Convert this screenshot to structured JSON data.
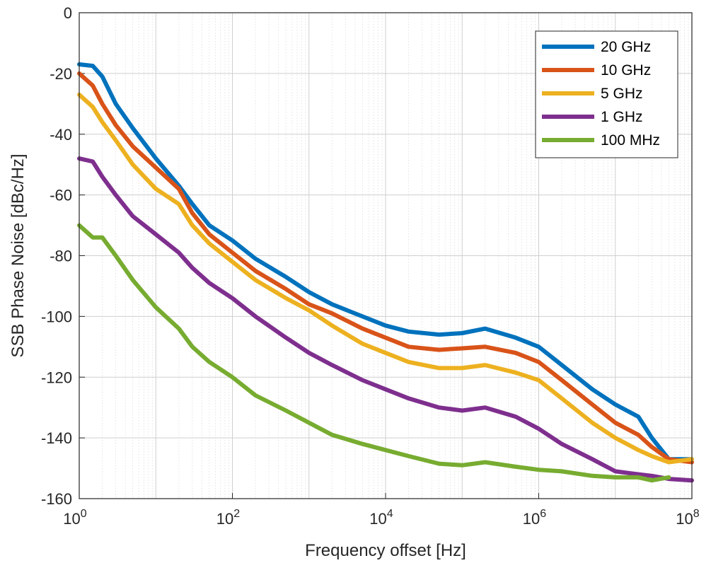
{
  "chart_data": {
    "type": "line",
    "title": "",
    "xlabel": "Frequency offset [Hz]",
    "ylabel": "SSB Phase Noise [dBc/Hz]",
    "x_scale": "log",
    "xlim": [
      1,
      100000000
    ],
    "ylim": [
      -160,
      0
    ],
    "x_ticks": [
      {
        "value": 1,
        "base": "10",
        "exp": "0"
      },
      {
        "value": 100,
        "base": "10",
        "exp": "2"
      },
      {
        "value": 10000,
        "base": "10",
        "exp": "4"
      },
      {
        "value": 1000000,
        "base": "10",
        "exp": "6"
      },
      {
        "value": 100000000,
        "base": "10",
        "exp": "8"
      }
    ],
    "y_ticks": [
      "0",
      "-20",
      "-40",
      "-60",
      "-80",
      "-100",
      "-120",
      "-140",
      "-160"
    ],
    "grid": true,
    "legend_position": "top-right",
    "series": [
      {
        "name": "20 GHz",
        "color": "#0072BD",
        "points": [
          [
            1,
            -17
          ],
          [
            1.5,
            -17.5
          ],
          [
            2,
            -21
          ],
          [
            3,
            -30
          ],
          [
            5,
            -38
          ],
          [
            10,
            -48
          ],
          [
            20,
            -57
          ],
          [
            30,
            -63
          ],
          [
            50,
            -70
          ],
          [
            100,
            -75
          ],
          [
            200,
            -81
          ],
          [
            500,
            -87
          ],
          [
            1000,
            -92
          ],
          [
            2000,
            -96
          ],
          [
            5000,
            -100
          ],
          [
            10000,
            -103
          ],
          [
            20000,
            -105
          ],
          [
            50000,
            -106
          ],
          [
            100000,
            -105.5
          ],
          [
            200000,
            -104
          ],
          [
            500000,
            -107
          ],
          [
            1000000,
            -110
          ],
          [
            2000000,
            -116
          ],
          [
            5000000,
            -124
          ],
          [
            10000000,
            -129
          ],
          [
            20000000,
            -133
          ],
          [
            30000000,
            -140
          ],
          [
            50000000,
            -147
          ],
          [
            100000000,
            -147
          ]
        ]
      },
      {
        "name": "10 GHz",
        "color": "#D95319",
        "points": [
          [
            1,
            -20
          ],
          [
            1.5,
            -24
          ],
          [
            2,
            -30
          ],
          [
            3,
            -37
          ],
          [
            5,
            -44
          ],
          [
            10,
            -51
          ],
          [
            20,
            -58
          ],
          [
            30,
            -66
          ],
          [
            50,
            -73
          ],
          [
            100,
            -79
          ],
          [
            200,
            -85
          ],
          [
            500,
            -91
          ],
          [
            1000,
            -96
          ],
          [
            2000,
            -99
          ],
          [
            5000,
            -104
          ],
          [
            10000,
            -107
          ],
          [
            20000,
            -110
          ],
          [
            50000,
            -111
          ],
          [
            100000,
            -110.5
          ],
          [
            200000,
            -110
          ],
          [
            500000,
            -112
          ],
          [
            1000000,
            -115
          ],
          [
            2000000,
            -121
          ],
          [
            5000000,
            -129
          ],
          [
            10000000,
            -135
          ],
          [
            20000000,
            -139
          ],
          [
            30000000,
            -143
          ],
          [
            50000000,
            -147
          ],
          [
            100000000,
            -148
          ]
        ]
      },
      {
        "name": "5 GHz",
        "color": "#EDB120",
        "points": [
          [
            1,
            -27
          ],
          [
            1.5,
            -31
          ],
          [
            2,
            -36
          ],
          [
            3,
            -42
          ],
          [
            5,
            -50
          ],
          [
            10,
            -58
          ],
          [
            20,
            -63
          ],
          [
            30,
            -70
          ],
          [
            50,
            -76
          ],
          [
            100,
            -82
          ],
          [
            200,
            -88
          ],
          [
            500,
            -94
          ],
          [
            1000,
            -98
          ],
          [
            2000,
            -103
          ],
          [
            5000,
            -109
          ],
          [
            10000,
            -112
          ],
          [
            20000,
            -115
          ],
          [
            50000,
            -117
          ],
          [
            100000,
            -117
          ],
          [
            200000,
            -116
          ],
          [
            500000,
            -118.5
          ],
          [
            1000000,
            -121
          ],
          [
            2000000,
            -127
          ],
          [
            5000000,
            -135
          ],
          [
            10000000,
            -140
          ],
          [
            20000000,
            -144
          ],
          [
            30000000,
            -146
          ],
          [
            50000000,
            -148
          ],
          [
            100000000,
            -147
          ]
        ]
      },
      {
        "name": "1 GHz",
        "color": "#7E2F8E",
        "points": [
          [
            1,
            -48
          ],
          [
            1.5,
            -49
          ],
          [
            2,
            -54
          ],
          [
            3,
            -60
          ],
          [
            5,
            -67
          ],
          [
            10,
            -73
          ],
          [
            20,
            -79
          ],
          [
            30,
            -84
          ],
          [
            50,
            -89
          ],
          [
            100,
            -94
          ],
          [
            200,
            -100
          ],
          [
            500,
            -107
          ],
          [
            1000,
            -112
          ],
          [
            2000,
            -116
          ],
          [
            5000,
            -121
          ],
          [
            10000,
            -124
          ],
          [
            20000,
            -127
          ],
          [
            50000,
            -130
          ],
          [
            100000,
            -131
          ],
          [
            200000,
            -130
          ],
          [
            500000,
            -133
          ],
          [
            1000000,
            -137
          ],
          [
            2000000,
            -142
          ],
          [
            5000000,
            -147
          ],
          [
            10000000,
            -151
          ],
          [
            20000000,
            -152
          ],
          [
            30000000,
            -152.5
          ],
          [
            50000000,
            -153.5
          ],
          [
            100000000,
            -154
          ]
        ]
      },
      {
        "name": "100 MHz",
        "color": "#77AC30",
        "points": [
          [
            1,
            -70
          ],
          [
            1.5,
            -74
          ],
          [
            2,
            -74
          ],
          [
            3,
            -80
          ],
          [
            5,
            -88
          ],
          [
            10,
            -97
          ],
          [
            20,
            -104
          ],
          [
            30,
            -110
          ],
          [
            50,
            -115
          ],
          [
            100,
            -120
          ],
          [
            200,
            -126
          ],
          [
            500,
            -131
          ],
          [
            1000,
            -135
          ],
          [
            2000,
            -139
          ],
          [
            5000,
            -142
          ],
          [
            10000,
            -144
          ],
          [
            20000,
            -146
          ],
          [
            50000,
            -148.5
          ],
          [
            100000,
            -149
          ],
          [
            200000,
            -148
          ],
          [
            500000,
            -149.5
          ],
          [
            1000000,
            -150.5
          ],
          [
            2000000,
            -151
          ],
          [
            5000000,
            -152.5
          ],
          [
            10000000,
            -153
          ],
          [
            20000000,
            -153
          ],
          [
            30000000,
            -154
          ],
          [
            50000000,
            -153
          ]
        ]
      }
    ]
  }
}
